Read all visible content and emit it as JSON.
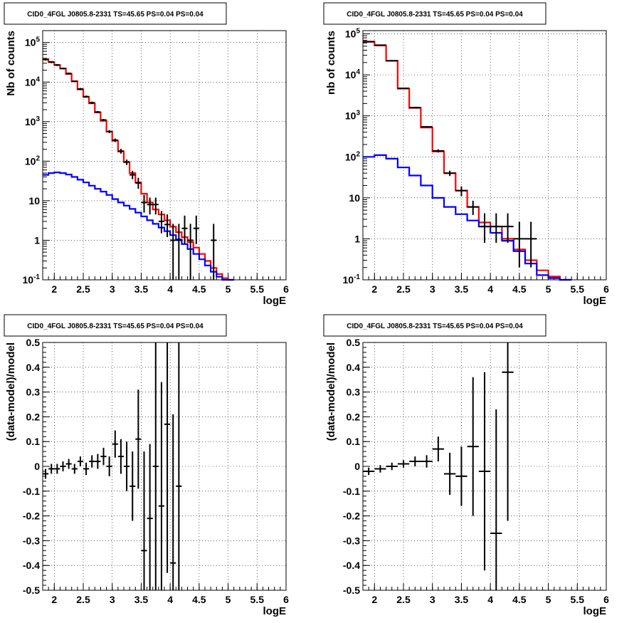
{
  "chart_data": [
    {
      "type": "line",
      "title": "CID0_4FGL J0805.8-2331 TS=45.65 PS=0.04 PS=0.04",
      "xlabel": "logE",
      "ylabel": "Nb of counts",
      "xlim": [
        1.8,
        6.0
      ],
      "ylim": [
        0.1,
        200000
      ],
      "yscale": "log",
      "grid": true,
      "xticks": [
        "2",
        "2.5",
        "3",
        "3.5",
        "4",
        "4.5",
        "5",
        "5.5",
        "6"
      ],
      "yticks": [
        "10^-1",
        "1",
        "10",
        "10^2",
        "10^3",
        "10^4",
        "10^5"
      ],
      "series": [
        {
          "color": "#ff0000",
          "kind": "step",
          "edges": [
            1.8,
            1.9,
            2.0,
            2.1,
            2.2,
            2.3,
            2.4,
            2.5,
            2.6,
            2.7,
            2.8,
            2.9,
            3.0,
            3.1,
            3.2,
            3.3,
            3.4,
            3.5,
            3.6,
            3.7,
            3.8,
            3.9,
            4.0,
            4.1,
            4.2,
            4.3,
            4.4,
            4.5,
            4.6,
            4.7,
            4.8,
            4.9,
            5.0,
            5.1
          ],
          "values": [
            38000,
            32000,
            27000,
            22000,
            16000,
            10500,
            6500,
            4200,
            2900,
            1700,
            1050,
            560,
            330,
            175,
            95,
            50,
            29,
            15,
            9,
            6,
            4.5,
            3.2,
            2.2,
            1.6,
            1.2,
            0.9,
            0.65,
            0.45,
            0.3,
            0.2,
            0.14,
            0.11,
            0.1
          ]
        },
        {
          "color": "#0000ff",
          "kind": "step",
          "edges": [
            1.8,
            1.9,
            2.0,
            2.1,
            2.2,
            2.3,
            2.4,
            2.5,
            2.6,
            2.7,
            2.8,
            2.9,
            3.0,
            3.1,
            3.2,
            3.3,
            3.4,
            3.5,
            3.6,
            3.7,
            3.8,
            3.9,
            4.0,
            4.1,
            4.2,
            4.3,
            4.4,
            4.5,
            4.6,
            4.7,
            4.8,
            4.9,
            5.0,
            5.1
          ],
          "values": [
            45,
            50,
            52,
            50,
            46,
            40,
            34,
            29,
            24,
            20,
            17,
            14,
            11,
            9,
            7.5,
            6.2,
            5,
            4,
            3.2,
            2.6,
            2.1,
            1.7,
            1.35,
            1.05,
            0.8,
            0.6,
            0.45,
            0.33,
            0.23,
            0.16,
            0.12,
            0.1,
            0.1
          ]
        },
        {
          "color": "#000000",
          "kind": "errorbars",
          "x": [
            1.85,
            1.95,
            2.05,
            2.15,
            2.25,
            2.35,
            2.45,
            2.55,
            2.65,
            2.75,
            2.85,
            2.95,
            3.05,
            3.15,
            3.25,
            3.35,
            3.45,
            3.55,
            3.65,
            3.75,
            3.85,
            3.95,
            4.05,
            4.15,
            4.25,
            4.35,
            4.45,
            4.75
          ],
          "y": [
            37000,
            32000,
            27000,
            22000,
            16500,
            10500,
            6700,
            4300,
            3000,
            1750,
            1100,
            560,
            340,
            180,
            95,
            45,
            28,
            9,
            8,
            8,
            3,
            2.5,
            1,
            1,
            2,
            1,
            2,
            1
          ],
          "ylo": [
            35000,
            30000,
            25500,
            21000,
            15500,
            10000,
            6300,
            4050,
            2800,
            1650,
            1030,
            510,
            305,
            155,
            80,
            35,
            20,
            5,
            4.5,
            4.5,
            1.5,
            1.2,
            0.1,
            0.1,
            0.8,
            0.1,
            0.8,
            0.1
          ],
          "yhi": [
            39000,
            34000,
            28500,
            23000,
            17500,
            11000,
            7100,
            4550,
            3200,
            1850,
            1170,
            610,
            375,
            205,
            110,
            57,
            38,
            14,
            12,
            12,
            5.5,
            4.5,
            2.6,
            2.6,
            4.2,
            2.6,
            4.2,
            2.6
          ],
          "xerr": 0.05
        }
      ]
    },
    {
      "type": "line",
      "title": "CID0_4FGL J0805.8-2331 TS=45.65 PS=0.04 PS=0.04",
      "xlabel": "logE",
      "ylabel": "nb of counts",
      "xlim": [
        1.8,
        6.0
      ],
      "ylim": [
        0.1,
        120000
      ],
      "yscale": "log",
      "grid": true,
      "xticks": [
        "2",
        "2.5",
        "3",
        "3.5",
        "4",
        "4.5",
        "5",
        "5.5",
        "6"
      ],
      "yticks": [
        "10^-1",
        "1",
        "10",
        "10^2",
        "10^3",
        "10^4",
        "10^5"
      ],
      "series": [
        {
          "color": "#ff0000",
          "kind": "step",
          "edges": [
            1.8,
            2.0,
            2.2,
            2.4,
            2.6,
            2.8,
            3.0,
            3.2,
            3.4,
            3.6,
            3.8,
            4.0,
            4.2,
            4.4,
            4.6,
            4.8,
            5.0,
            5.2,
            5.4
          ],
          "values": [
            65000,
            52000,
            22000,
            4600,
            1550,
            520,
            135,
            40,
            15,
            6,
            2.5,
            2,
            1,
            0.55,
            0.3,
            0.17,
            0.12,
            0.1
          ]
        },
        {
          "color": "#0000ff",
          "kind": "step",
          "edges": [
            1.8,
            2.0,
            2.2,
            2.4,
            2.6,
            2.8,
            3.0,
            3.2,
            3.4,
            3.6,
            3.8,
            4.0,
            4.2,
            4.4,
            4.6,
            4.8,
            5.0,
            5.2,
            5.4
          ],
          "values": [
            100,
            110,
            90,
            55,
            35,
            20,
            10,
            6,
            4,
            2.8,
            2,
            1.4,
            0.9,
            0.5,
            0.25,
            0.13,
            0.11,
            0.1
          ]
        },
        {
          "color": "#000000",
          "kind": "errorbars",
          "x": [
            1.9,
            2.1,
            2.3,
            2.5,
            2.7,
            2.9,
            3.1,
            3.3,
            3.5,
            3.7,
            3.9,
            4.1,
            4.3,
            4.5,
            4.7
          ],
          "y": [
            64000,
            53000,
            22000,
            4700,
            1600,
            540,
            140,
            40,
            15,
            6,
            2,
            2,
            2,
            1,
            1
          ],
          "ylo": [
            63000,
            52500,
            21800,
            4600,
            1550,
            520,
            128,
            34,
            11,
            3.8,
            0.8,
            0.8,
            0.8,
            0.2,
            0.2
          ],
          "yhi": [
            65000,
            53500,
            22200,
            4800,
            1650,
            560,
            152,
            46,
            19,
            8.5,
            4.2,
            4.2,
            4.2,
            2.6,
            2.6
          ],
          "xerr": 0.1
        }
      ]
    },
    {
      "type": "scatter",
      "title": "CID0_4FGL J0805.8-2331 TS=45.65 PS=0.04 PS=0.04",
      "xlabel": "logE",
      "ylabel": "(data-model)/model",
      "xlim": [
        1.8,
        6.0
      ],
      "ylim": [
        -0.5,
        0.5
      ],
      "grid": true,
      "xticks": [
        "2",
        "2.5",
        "3",
        "3.5",
        "4",
        "4.5",
        "5",
        "5.5",
        "6"
      ],
      "yticks": [
        "-0.5",
        "-0.4",
        "-0.3",
        "-0.2",
        "-0.1",
        "0",
        "0.1",
        "0.2",
        "0.3",
        "0.4",
        "0.5"
      ],
      "series": [
        {
          "color": "#000000",
          "kind": "errorbars",
          "x": [
            1.85,
            1.95,
            2.05,
            2.15,
            2.25,
            2.35,
            2.45,
            2.55,
            2.65,
            2.75,
            2.85,
            2.95,
            3.05,
            3.15,
            3.25,
            3.35,
            3.45,
            3.55,
            3.65,
            3.75,
            3.85,
            3.95,
            4.05,
            4.15
          ],
          "y": [
            -0.03,
            -0.01,
            -0.01,
            0.0,
            0.01,
            -0.01,
            0.02,
            -0.01,
            0.02,
            0.02,
            0.04,
            0.0,
            0.09,
            0.04,
            0.0,
            -0.08,
            0.11,
            -0.34,
            -0.21,
            0.0,
            -0.16,
            0.17,
            -0.39,
            -0.08
          ],
          "yerr": [
            0.02,
            0.02,
            0.02,
            0.02,
            0.02,
            0.02,
            0.02,
            0.025,
            0.025,
            0.03,
            0.035,
            0.04,
            0.055,
            0.07,
            0.1,
            0.14,
            0.2,
            0.4,
            0.3,
            0.5,
            0.5,
            0.6,
            0.6,
            0.6
          ],
          "xerr": 0.05
        }
      ]
    },
    {
      "type": "scatter",
      "title": "CID0_4FGL J0805.8-2331 TS=45.65 PS=0.04 PS=0.04",
      "xlabel": "logE",
      "ylabel": "(data-model)/model",
      "xlim": [
        1.8,
        6.0
      ],
      "ylim": [
        -0.5,
        0.5
      ],
      "grid": true,
      "xticks": [
        "2",
        "2.5",
        "3",
        "3.5",
        "4",
        "4.5",
        "5",
        "5.5",
        "6"
      ],
      "yticks": [
        "-0.5",
        "-0.4",
        "-0.3",
        "-0.2",
        "-0.1",
        "0",
        "0.1",
        "0.2",
        "0.3",
        "0.4",
        "0.5"
      ],
      "series": [
        {
          "color": "#000000",
          "kind": "errorbars",
          "x": [
            1.9,
            2.1,
            2.3,
            2.5,
            2.7,
            2.9,
            3.1,
            3.3,
            3.5,
            3.7,
            3.9,
            4.1,
            4.3
          ],
          "y": [
            -0.02,
            -0.01,
            0.0,
            0.01,
            0.02,
            0.02,
            0.07,
            -0.03,
            -0.04,
            0.08,
            -0.02,
            -0.27,
            0.38
          ],
          "yerr": [
            0.015,
            0.015,
            0.015,
            0.015,
            0.02,
            0.025,
            0.05,
            0.085,
            0.12,
            0.28,
            0.4,
            0.5,
            0.6
          ],
          "xerr": 0.1
        }
      ]
    }
  ]
}
